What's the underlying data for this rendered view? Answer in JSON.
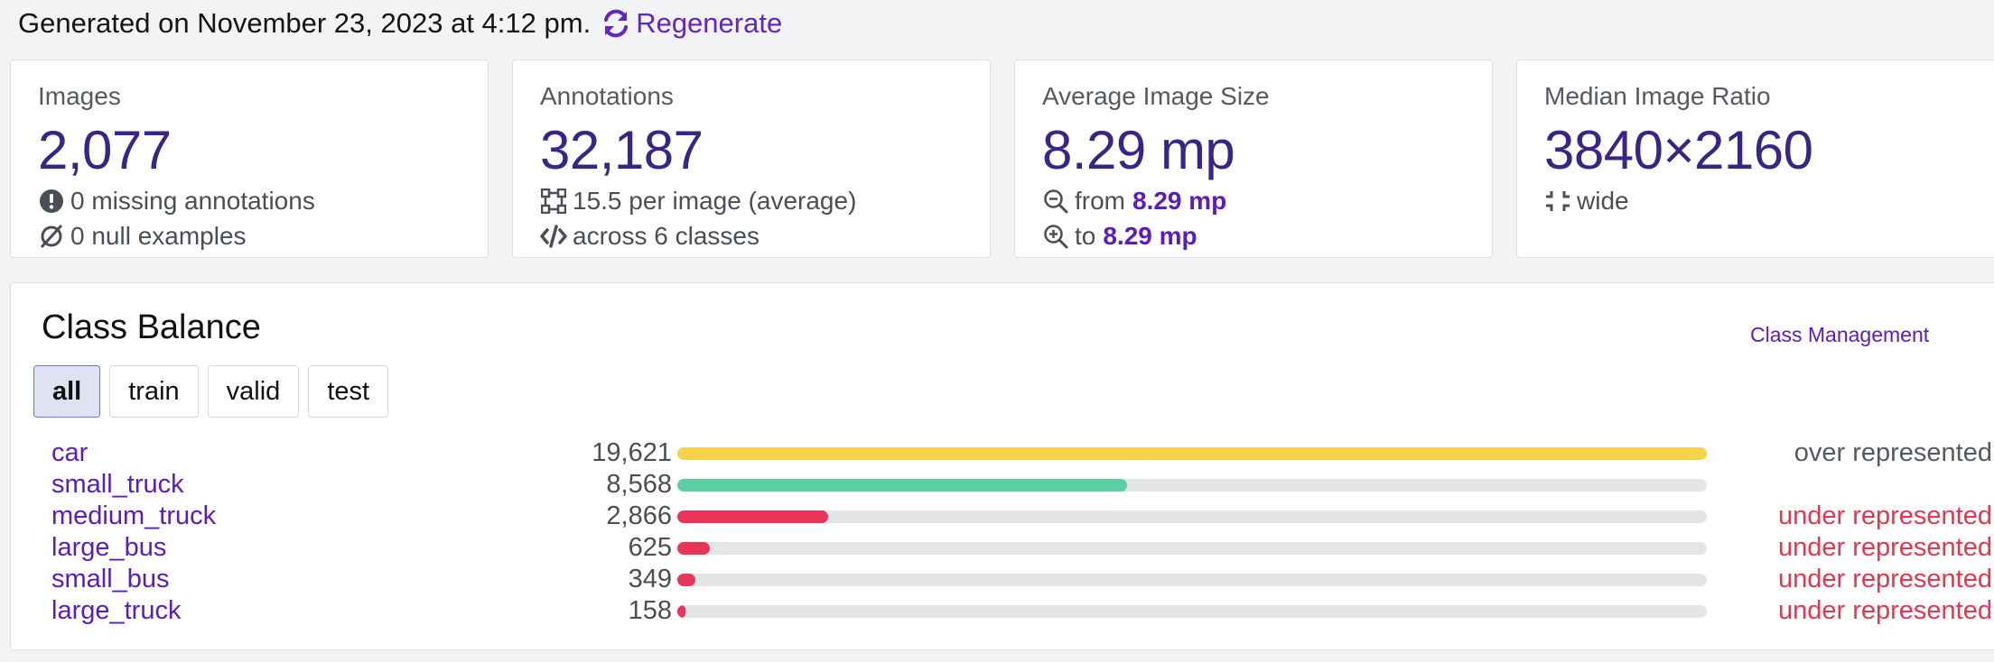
{
  "header": {
    "generated_text": "Generated on November 23, 2023 at 4:12 pm.",
    "regenerate_label": "Regenerate"
  },
  "stats": {
    "images": {
      "label": "Images",
      "value": "2,077",
      "missing": "0 missing annotations",
      "null_examples": "0 null examples"
    },
    "annotations": {
      "label": "Annotations",
      "value": "32,187",
      "per_image": "15.5 per image (average)",
      "classes": "across 6 classes"
    },
    "avg_size": {
      "label": "Average Image Size",
      "value": "8.29 mp",
      "from_label": "from",
      "from_value": "8.29 mp",
      "to_label": "to",
      "to_value": "8.29 mp"
    },
    "median_ratio": {
      "label": "Median Image Ratio",
      "value": "3840×2160",
      "shape": "wide"
    }
  },
  "class_balance": {
    "title": "Class Balance",
    "management_link": "Class Management",
    "tabs": [
      {
        "label": "all",
        "active": true
      },
      {
        "label": "train",
        "active": false
      },
      {
        "label": "valid",
        "active": false
      },
      {
        "label": "test",
        "active": false
      }
    ],
    "max_count": 19621,
    "classes": [
      {
        "name": "car",
        "count": "19,621",
        "value": 19621,
        "status": "over represented",
        "status_color": "#555a62",
        "bar_color": "#f5d24a"
      },
      {
        "name": "small_truck",
        "count": "8,568",
        "value": 8568,
        "status": "",
        "status_color": "#555a62",
        "bar_color": "#5ccea4"
      },
      {
        "name": "medium_truck",
        "count": "2,866",
        "value": 2866,
        "status": "under represented",
        "status_color": "#e8344f",
        "bar_color": "#e8345a"
      },
      {
        "name": "large_bus",
        "count": "625",
        "value": 625,
        "status": "under represented",
        "status_color": "#e8344f",
        "bar_color": "#e8345a"
      },
      {
        "name": "small_bus",
        "count": "349",
        "value": 349,
        "status": "under represented",
        "status_color": "#e8344f",
        "bar_color": "#e8345a"
      },
      {
        "name": "large_truck",
        "count": "158",
        "value": 158,
        "status": "under represented",
        "status_color": "#e8344f",
        "bar_color": "#e8345a"
      }
    ]
  },
  "colors": {
    "accent": "#5b1bc4",
    "stat_value": "#3a2488"
  }
}
